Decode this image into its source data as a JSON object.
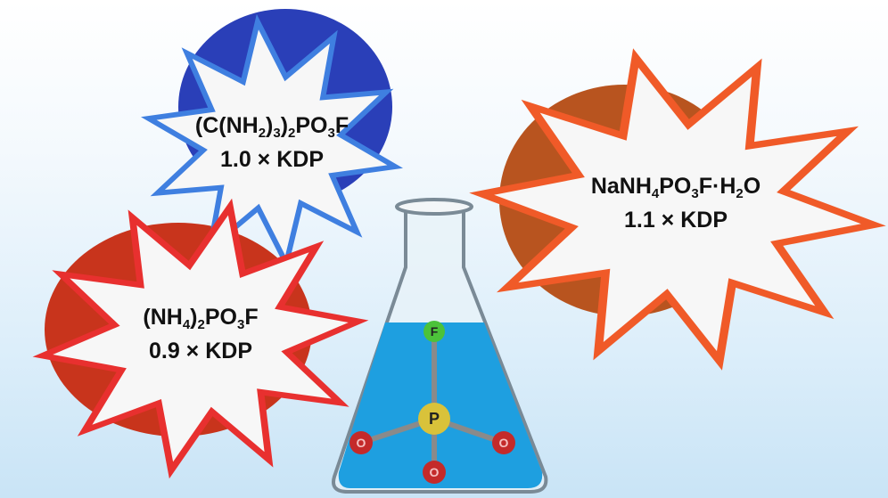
{
  "compounds": [
    {
      "formula": [
        "(C(NH",
        "2",
        ")",
        "3",
        ")",
        "2",
        "PO",
        "3",
        "F"
      ],
      "ratio": "1.0 × KDP",
      "color": "#3f7fe0",
      "cloud": "#2a3fb8"
    },
    {
      "formula": [
        "(NH",
        "4",
        ")",
        "2",
        "PO",
        "3",
        "F"
      ],
      "ratio": "0.9 × KDP",
      "color": "#e8302f",
      "cloud": "#c8341c"
    },
    {
      "formula": [
        "NaNH",
        "4",
        "PO",
        "3",
        "F·H",
        "2",
        "O"
      ],
      "ratio": "1.1 × KDP",
      "color": "#f05a28",
      "cloud": "#b8541f"
    }
  ],
  "atoms": {
    "f": "F",
    "p": "P",
    "o1": "O",
    "o2": "O",
    "o3": "O"
  },
  "colors": {
    "f": "#4cc23a",
    "p": "#d9c23a",
    "o": "#c42a2a",
    "liquid": "#1e9fe0"
  }
}
